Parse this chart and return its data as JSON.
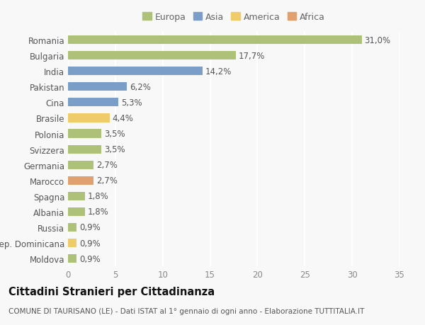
{
  "countries": [
    "Romania",
    "Bulgaria",
    "India",
    "Pakistan",
    "Cina",
    "Brasile",
    "Polonia",
    "Svizzera",
    "Germania",
    "Marocco",
    "Spagna",
    "Albania",
    "Russia",
    "Rep. Dominicana",
    "Moldova"
  ],
  "values": [
    31.0,
    17.7,
    14.2,
    6.2,
    5.3,
    4.4,
    3.5,
    3.5,
    2.7,
    2.7,
    1.8,
    1.8,
    0.9,
    0.9,
    0.9
  ],
  "labels": [
    "31,0%",
    "17,7%",
    "14,2%",
    "6,2%",
    "5,3%",
    "4,4%",
    "3,5%",
    "3,5%",
    "2,7%",
    "2,7%",
    "1,8%",
    "1,8%",
    "0,9%",
    "0,9%",
    "0,9%"
  ],
  "continents": [
    "Europa",
    "Europa",
    "Asia",
    "Asia",
    "Asia",
    "America",
    "Europa",
    "Europa",
    "Europa",
    "Africa",
    "Europa",
    "Europa",
    "Europa",
    "America",
    "Europa"
  ],
  "colors": {
    "Europa": "#adc178",
    "Asia": "#7b9ec8",
    "America": "#f0cb6a",
    "Africa": "#e0a070"
  },
  "legend_order": [
    "Europa",
    "Asia",
    "America",
    "Africa"
  ],
  "xlim": [
    0,
    35
  ],
  "xticks": [
    0,
    5,
    10,
    15,
    20,
    25,
    30,
    35
  ],
  "title": "Cittadini Stranieri per Cittadinanza",
  "subtitle": "COMUNE DI TAURISANO (LE) - Dati ISTAT al 1° gennaio di ogni anno - Elaborazione TUTTITALIA.IT",
  "background_color": "#f8f8f8",
  "grid_color": "#ffffff",
  "bar_height": 0.55,
  "label_fontsize": 8.5,
  "ytick_fontsize": 8.5,
  "xtick_fontsize": 8.5,
  "title_fontsize": 10.5,
  "subtitle_fontsize": 7.5,
  "legend_fontsize": 9
}
